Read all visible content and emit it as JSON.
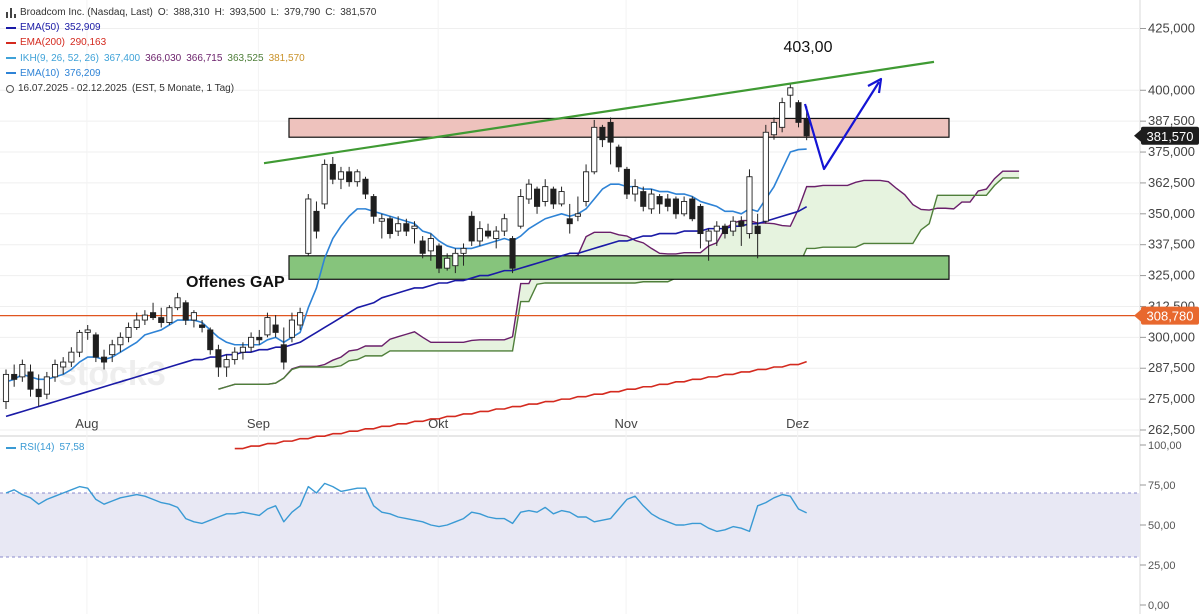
{
  "header": {
    "title": "Broadcom Inc. (Nasdaq, Last)",
    "ohlc": [
      {
        "label": "O:",
        "value": "388,310"
      },
      {
        "label": "H:",
        "value": "393,500"
      },
      {
        "label": "L:",
        "value": "379,790"
      },
      {
        "label": "C:",
        "value": "381,570"
      }
    ],
    "period": "16.07.2025 - 02.12.2025",
    "period_detail": "(EST, 5 Monate, 1 Tag)"
  },
  "indicators": [
    {
      "name": "EMA(50)",
      "values": [
        "352,909"
      ],
      "color": "#1a1aa6"
    },
    {
      "name": "EMA(200)",
      "values": [
        "290,163"
      ],
      "color": "#d42a1f"
    },
    {
      "name": "IKH(9, 26, 52, 26)",
      "values": [
        "367,400",
        "366,030",
        "366,715",
        "363,525",
        "381,570"
      ],
      "color": "#3fa2d8"
    },
    {
      "name": "EMA(10)",
      "values": [
        "376,209"
      ],
      "color": "#2e83d6"
    }
  ],
  "colors": {
    "ema50": "#1a1aa6",
    "ema200": "#d42a1f",
    "ema10": "#2e83d6",
    "ikh_purple": "#6a1f6a",
    "ikh_green": "#4f7f3a",
    "cloud_fill": "#e6f3df",
    "resistance_zone": "#eec2bd",
    "support_zone": "#86c47c",
    "trend_line": "#3f9a33",
    "arrow": "#1414d4",
    "gap_line": "#e05520",
    "gap_badge": "#e8682e",
    "price_badge": "#1d1d1d",
    "rsi_line": "#3a9ad4",
    "rsi_band": "#e8e8f4",
    "watermark": "#eeeeee"
  },
  "annotations": {
    "peak_label": "403,00",
    "gap_label": "Offenes GAP",
    "watermark": "stock3"
  },
  "rsi": {
    "label": "RSI(14)",
    "value": "57,58"
  },
  "chart_data": [
    {
      "type": "candlestick",
      "title": "Broadcom Inc. (Nasdaq, Last)",
      "x_tick_labels": [
        "Aug",
        "Sep",
        "Okt",
        "Nov",
        "Dez"
      ],
      "y_tick_labels": [
        "425,000",
        "400,000",
        "387,500",
        "375,000",
        "362,500",
        "350,000",
        "337,500",
        "325,000",
        "312,500",
        "300,000",
        "287,500",
        "275,000",
        "262,500"
      ],
      "ylim": [
        262.5,
        437
      ],
      "candles": [
        {
          "o": 274,
          "h": 287,
          "l": 271,
          "c": 285
        },
        {
          "o": 285,
          "h": 289,
          "l": 280,
          "c": 283
        },
        {
          "o": 284,
          "h": 291,
          "l": 282,
          "c": 289
        },
        {
          "o": 286,
          "h": 289,
          "l": 276,
          "c": 279
        },
        {
          "o": 279,
          "h": 285,
          "l": 272,
          "c": 276
        },
        {
          "o": 277,
          "h": 286,
          "l": 275,
          "c": 284
        },
        {
          "o": 284,
          "h": 291,
          "l": 282,
          "c": 289
        },
        {
          "o": 288,
          "h": 292,
          "l": 285,
          "c": 290
        },
        {
          "o": 290,
          "h": 296,
          "l": 288,
          "c": 294
        },
        {
          "o": 294,
          "h": 303,
          "l": 292,
          "c": 302
        },
        {
          "o": 302,
          "h": 305,
          "l": 299,
          "c": 303
        },
        {
          "o": 301,
          "h": 302,
          "l": 290,
          "c": 292
        },
        {
          "o": 292,
          "h": 295,
          "l": 287,
          "c": 290
        },
        {
          "o": 293,
          "h": 299,
          "l": 290,
          "c": 297
        },
        {
          "o": 297,
          "h": 302,
          "l": 294,
          "c": 300
        },
        {
          "o": 300,
          "h": 306,
          "l": 298,
          "c": 304
        },
        {
          "o": 304,
          "h": 310,
          "l": 303,
          "c": 307
        },
        {
          "o": 307,
          "h": 311,
          "l": 305,
          "c": 309
        },
        {
          "o": 310,
          "h": 314,
          "l": 307,
          "c": 308
        },
        {
          "o": 308,
          "h": 312,
          "l": 304,
          "c": 306
        },
        {
          "o": 306,
          "h": 313,
          "l": 305,
          "c": 312
        },
        {
          "o": 312,
          "h": 318,
          "l": 311,
          "c": 316
        },
        {
          "o": 314,
          "h": 315,
          "l": 305,
          "c": 307
        },
        {
          "o": 307,
          "h": 311,
          "l": 304,
          "c": 310
        },
        {
          "o": 305,
          "h": 307,
          "l": 302,
          "c": 304
        },
        {
          "o": 303,
          "h": 304,
          "l": 293,
          "c": 295
        },
        {
          "o": 295,
          "h": 297,
          "l": 284,
          "c": 288
        },
        {
          "o": 288,
          "h": 293,
          "l": 284,
          "c": 291
        },
        {
          "o": 291,
          "h": 296,
          "l": 289,
          "c": 294
        },
        {
          "o": 294,
          "h": 298,
          "l": 291,
          "c": 296
        },
        {
          "o": 296,
          "h": 302,
          "l": 294,
          "c": 300
        },
        {
          "o": 300,
          "h": 303,
          "l": 297,
          "c": 299
        },
        {
          "o": 301,
          "h": 310,
          "l": 300,
          "c": 308
        },
        {
          "o": 305,
          "h": 309,
          "l": 300,
          "c": 302
        },
        {
          "o": 297,
          "h": 304,
          "l": 287,
          "c": 290
        },
        {
          "o": 300,
          "h": 310,
          "l": 298,
          "c": 307
        },
        {
          "o": 305,
          "h": 312,
          "l": 303,
          "c": 310
        },
        {
          "o": 334,
          "h": 358,
          "l": 333,
          "c": 356
        },
        {
          "o": 351,
          "h": 355,
          "l": 340,
          "c": 343
        },
        {
          "o": 354,
          "h": 372,
          "l": 352,
          "c": 370
        },
        {
          "o": 370,
          "h": 373,
          "l": 362,
          "c": 364
        },
        {
          "o": 364,
          "h": 369,
          "l": 360,
          "c": 367
        },
        {
          "o": 367,
          "h": 369,
          "l": 361,
          "c": 363
        },
        {
          "o": 363,
          "h": 368,
          "l": 361,
          "c": 367
        },
        {
          "o": 364,
          "h": 365,
          "l": 356,
          "c": 358
        },
        {
          "o": 357,
          "h": 358,
          "l": 346,
          "c": 349
        },
        {
          "o": 347,
          "h": 350,
          "l": 340,
          "c": 348
        },
        {
          "o": 348,
          "h": 349,
          "l": 340,
          "c": 342
        },
        {
          "o": 343,
          "h": 349,
          "l": 341,
          "c": 346
        },
        {
          "o": 346,
          "h": 348,
          "l": 341,
          "c": 343
        },
        {
          "o": 344,
          "h": 347,
          "l": 338,
          "c": 345
        },
        {
          "o": 339,
          "h": 341,
          "l": 332,
          "c": 334
        },
        {
          "o": 335,
          "h": 342,
          "l": 331,
          "c": 340
        },
        {
          "o": 337,
          "h": 338,
          "l": 326,
          "c": 328
        },
        {
          "o": 328,
          "h": 334,
          "l": 327,
          "c": 332
        },
        {
          "o": 329,
          "h": 336,
          "l": 326,
          "c": 334
        },
        {
          "o": 334,
          "h": 338,
          "l": 329,
          "c": 336
        },
        {
          "o": 349,
          "h": 351,
          "l": 337,
          "c": 339
        },
        {
          "o": 339,
          "h": 347,
          "l": 337,
          "c": 344
        },
        {
          "o": 343,
          "h": 346,
          "l": 340,
          "c": 341
        },
        {
          "o": 340,
          "h": 345,
          "l": 336,
          "c": 343
        },
        {
          "o": 343,
          "h": 350,
          "l": 341,
          "c": 348
        },
        {
          "o": 340,
          "h": 341,
          "l": 326,
          "c": 328
        },
        {
          "o": 345,
          "h": 360,
          "l": 344,
          "c": 357
        },
        {
          "o": 356,
          "h": 364,
          "l": 354,
          "c": 362
        },
        {
          "o": 360,
          "h": 361,
          "l": 350,
          "c": 353
        },
        {
          "o": 355,
          "h": 364,
          "l": 353,
          "c": 361
        },
        {
          "o": 360,
          "h": 361,
          "l": 352,
          "c": 354
        },
        {
          "o": 354,
          "h": 361,
          "l": 353,
          "c": 359
        },
        {
          "o": 348,
          "h": 354,
          "l": 342,
          "c": 346
        },
        {
          "o": 349,
          "h": 357,
          "l": 347,
          "c": 350
        },
        {
          "o": 355,
          "h": 370,
          "l": 353,
          "c": 367
        },
        {
          "o": 367,
          "h": 388,
          "l": 366,
          "c": 385
        },
        {
          "o": 385,
          "h": 386,
          "l": 377,
          "c": 380
        },
        {
          "o": 387,
          "h": 389,
          "l": 370,
          "c": 379
        },
        {
          "o": 377,
          "h": 378,
          "l": 367,
          "c": 369
        },
        {
          "o": 368,
          "h": 369,
          "l": 356,
          "c": 358
        },
        {
          "o": 358,
          "h": 364,
          "l": 355,
          "c": 361
        },
        {
          "o": 359,
          "h": 361,
          "l": 351,
          "c": 353
        },
        {
          "o": 352,
          "h": 360,
          "l": 350,
          "c": 358
        },
        {
          "o": 357,
          "h": 358,
          "l": 350,
          "c": 354
        },
        {
          "o": 356,
          "h": 358,
          "l": 351,
          "c": 353
        },
        {
          "o": 356,
          "h": 357,
          "l": 348,
          "c": 350
        },
        {
          "o": 350,
          "h": 357,
          "l": 349,
          "c": 355
        },
        {
          "o": 356,
          "h": 357,
          "l": 347,
          "c": 348
        },
        {
          "o": 353,
          "h": 354,
          "l": 336,
          "c": 342
        },
        {
          "o": 339,
          "h": 344,
          "l": 331,
          "c": 343
        },
        {
          "o": 343,
          "h": 347,
          "l": 337,
          "c": 345
        },
        {
          "o": 345,
          "h": 346,
          "l": 340,
          "c": 342
        },
        {
          "o": 343,
          "h": 349,
          "l": 341,
          "c": 347
        },
        {
          "o": 347,
          "h": 349,
          "l": 337,
          "c": 345
        },
        {
          "o": 342,
          "h": 368,
          "l": 340,
          "c": 365
        },
        {
          "o": 345,
          "h": 350,
          "l": 332,
          "c": 342
        },
        {
          "o": 347,
          "h": 386,
          "l": 346,
          "c": 383
        },
        {
          "o": 382,
          "h": 389,
          "l": 380,
          "c": 387
        },
        {
          "o": 385,
          "h": 397,
          "l": 383,
          "c": 395
        },
        {
          "o": 398,
          "h": 403,
          "l": 393,
          "c": 401
        },
        {
          "o": 395,
          "h": 396,
          "l": 385,
          "c": 387
        },
        {
          "o": 388.31,
          "h": 393.5,
          "l": 379.79,
          "c": 381.57
        }
      ],
      "ema10": [
        282,
        283,
        285,
        284,
        283,
        283,
        284,
        285,
        287,
        290,
        292,
        292,
        291,
        292,
        294,
        296,
        298,
        301,
        302,
        303,
        305,
        307,
        307,
        307,
        306,
        303,
        300,
        298,
        297,
        297,
        297,
        297,
        299,
        300,
        298,
        300,
        302,
        312,
        320,
        332,
        340,
        345,
        349,
        352,
        352,
        351,
        350,
        349,
        348,
        347,
        346,
        343,
        342,
        339,
        337,
        336,
        336,
        336,
        337,
        338,
        339,
        340,
        339,
        341,
        344,
        346,
        348,
        349,
        350,
        349,
        350,
        352,
        356,
        360,
        362,
        362,
        361,
        361,
        360,
        360,
        359,
        359,
        358,
        358,
        357,
        355,
        354,
        353,
        351,
        351,
        350,
        352,
        351,
        356,
        361,
        368,
        375,
        376,
        376.2
      ],
      "ema50": [
        268,
        269,
        270,
        271,
        272,
        273,
        274,
        275,
        276,
        277,
        278,
        279,
        280,
        281,
        282,
        283,
        284,
        285,
        286,
        287,
        288,
        289,
        290,
        291,
        291,
        292,
        292,
        293,
        293,
        294,
        294,
        295,
        295,
        296,
        296,
        297,
        298,
        300,
        302,
        304,
        306,
        308,
        310,
        312,
        313,
        314,
        316,
        317,
        318,
        319,
        320,
        320,
        321,
        322,
        322,
        323,
        323,
        324,
        325,
        325,
        326,
        327,
        327,
        328,
        329,
        330,
        331,
        332,
        333,
        334,
        334,
        335,
        336,
        337,
        338,
        339,
        339,
        340,
        341,
        341,
        342,
        342,
        342,
        343,
        343,
        343,
        344,
        344,
        344,
        345,
        345,
        346,
        346,
        347,
        348,
        349,
        350,
        351,
        352.9
      ],
      "ema200": [
        255,
        255,
        256,
        256,
        257,
        257,
        258,
        258,
        259,
        259,
        260,
        260,
        261,
        261,
        262,
        262,
        263,
        263,
        264,
        264,
        265,
        265,
        266,
        266,
        267,
        267,
        268,
        268,
        269,
        269,
        270,
        270,
        271,
        271,
        272,
        272,
        273,
        273,
        274,
        274,
        275,
        275,
        276,
        276,
        277,
        277,
        278,
        278,
        279,
        279,
        280,
        280,
        281,
        281,
        282,
        282,
        283,
        283,
        284,
        284,
        285,
        285,
        286,
        286,
        287,
        287,
        288,
        288,
        289,
        289,
        290.163
      ]
    },
    {
      "type": "line",
      "title": "RSI(14)",
      "y_tick_labels": [
        "100,00",
        "75,00",
        "50,00",
        "25,00",
        "0,00"
      ],
      "ylim": [
        0,
        100
      ],
      "reference_lines": [
        70,
        30
      ],
      "values": [
        70,
        72,
        69,
        67,
        63,
        66,
        68,
        70,
        72,
        74,
        73,
        66,
        63,
        65,
        67,
        68,
        69,
        68,
        66,
        64,
        63,
        61,
        54,
        52,
        51,
        53,
        55,
        57,
        57,
        58,
        57,
        56,
        60,
        62,
        52,
        58,
        62,
        74,
        70,
        76,
        74,
        71,
        72,
        73,
        73,
        62,
        58,
        57,
        55,
        54,
        53,
        52,
        50,
        49,
        50,
        52,
        54,
        58,
        57,
        55,
        54,
        54,
        51,
        58,
        59,
        58,
        61,
        57,
        59,
        58,
        55,
        55,
        52,
        53,
        54,
        60,
        66,
        68,
        62,
        57,
        54,
        52,
        50,
        50,
        51,
        51,
        48,
        46,
        47,
        49,
        48,
        46,
        62,
        64,
        67,
        69,
        68,
        60,
        57.58
      ]
    }
  ]
}
